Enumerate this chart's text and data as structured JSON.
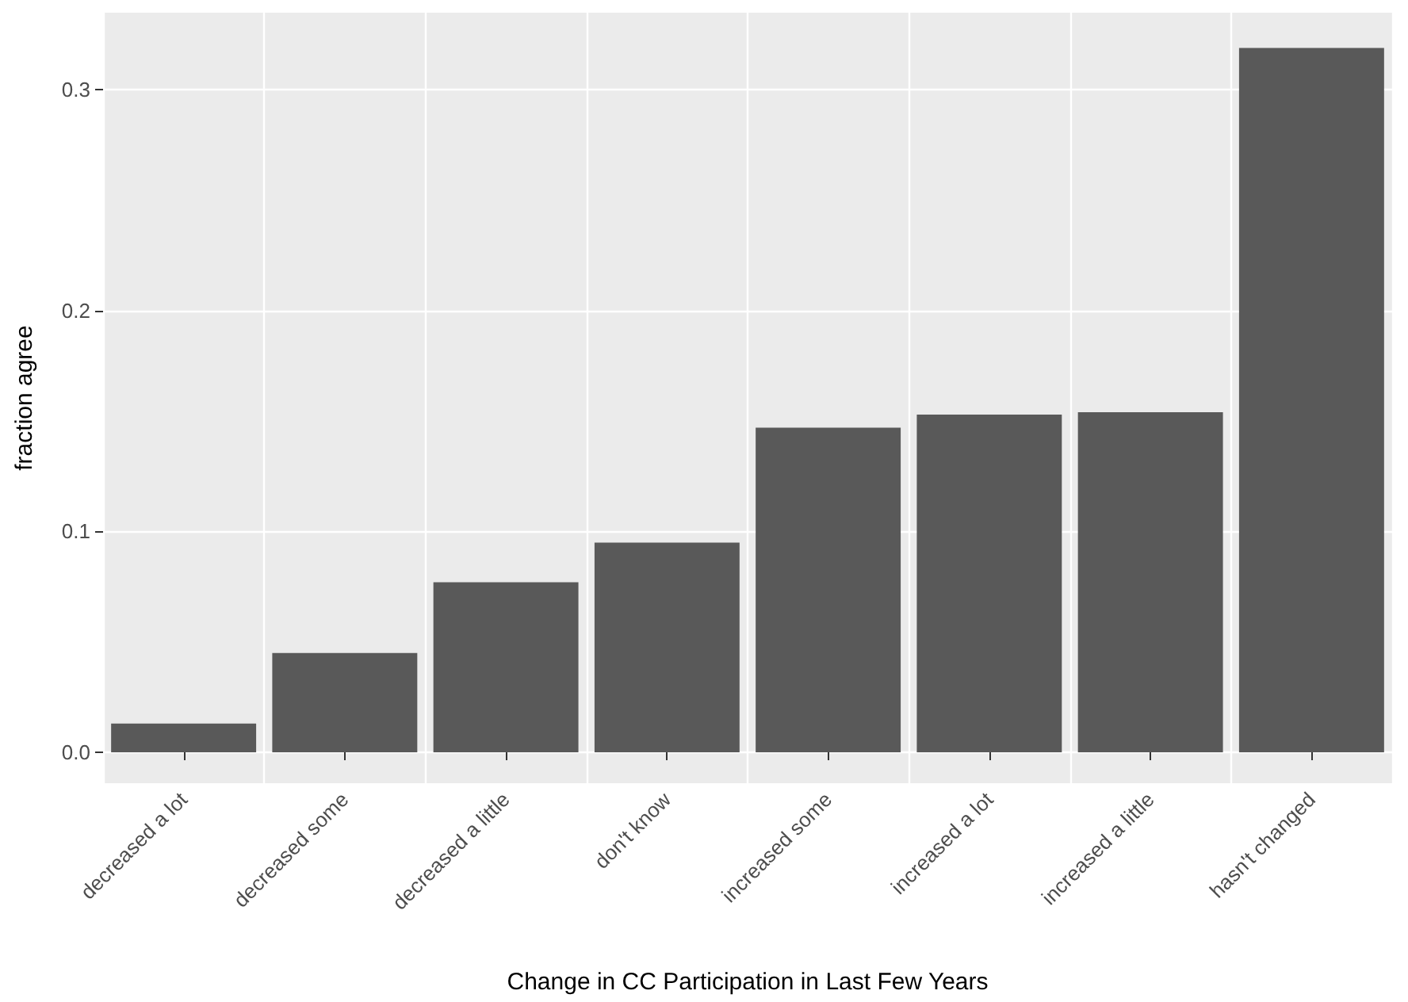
{
  "chart_data": {
    "type": "bar",
    "xlabel": "Change in CC Participation in Last Few Years",
    "ylabel": "fraction agree",
    "categories": [
      "decreased a lot",
      "decreased some",
      "decreased a little",
      "don't know",
      "increased some",
      "increased a lot",
      "increased a little",
      "hasn't changed"
    ],
    "values": [
      0.013,
      0.045,
      0.077,
      0.095,
      0.147,
      0.153,
      0.154,
      0.319
    ],
    "color": "#595959",
    "ylim": [
      -0.014,
      0.335
    ],
    "yticks": [
      {
        "value": 0,
        "label": "0.0"
      },
      0.1,
      0.2,
      0.3
    ],
    "grid": true
  }
}
